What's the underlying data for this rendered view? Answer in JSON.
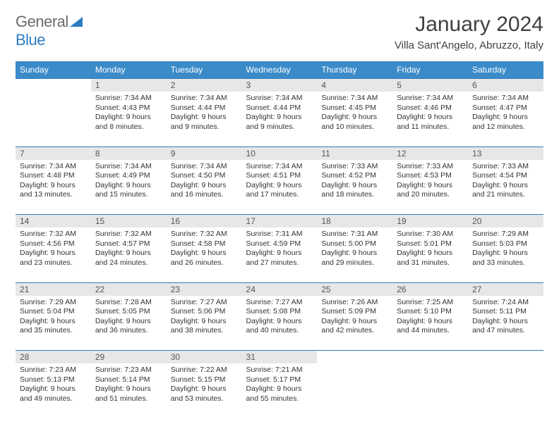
{
  "logo": {
    "general": "General",
    "blue": "Blue"
  },
  "title": "January 2024",
  "location": "Villa Sant'Angelo, Abruzzo, Italy",
  "colors": {
    "header_bg": "#3b8bc9",
    "header_text": "#ffffff",
    "daynum_bg": "#e7e7e7",
    "border": "#2e7cc0",
    "logo_gray": "#6b6b6b",
    "logo_blue": "#2e7cc0"
  },
  "weekdays": [
    "Sunday",
    "Monday",
    "Tuesday",
    "Wednesday",
    "Thursday",
    "Friday",
    "Saturday"
  ],
  "weeks": [
    {
      "nums": [
        "",
        "1",
        "2",
        "3",
        "4",
        "5",
        "6"
      ],
      "cells": [
        null,
        {
          "sunrise": "7:34 AM",
          "sunset": "4:43 PM",
          "daylight": "9 hours and 8 minutes."
        },
        {
          "sunrise": "7:34 AM",
          "sunset": "4:44 PM",
          "daylight": "9 hours and 9 minutes."
        },
        {
          "sunrise": "7:34 AM",
          "sunset": "4:44 PM",
          "daylight": "9 hours and 9 minutes."
        },
        {
          "sunrise": "7:34 AM",
          "sunset": "4:45 PM",
          "daylight": "9 hours and 10 minutes."
        },
        {
          "sunrise": "7:34 AM",
          "sunset": "4:46 PM",
          "daylight": "9 hours and 11 minutes."
        },
        {
          "sunrise": "7:34 AM",
          "sunset": "4:47 PM",
          "daylight": "9 hours and 12 minutes."
        }
      ]
    },
    {
      "nums": [
        "7",
        "8",
        "9",
        "10",
        "11",
        "12",
        "13"
      ],
      "cells": [
        {
          "sunrise": "7:34 AM",
          "sunset": "4:48 PM",
          "daylight": "9 hours and 13 minutes."
        },
        {
          "sunrise": "7:34 AM",
          "sunset": "4:49 PM",
          "daylight": "9 hours and 15 minutes."
        },
        {
          "sunrise": "7:34 AM",
          "sunset": "4:50 PM",
          "daylight": "9 hours and 16 minutes."
        },
        {
          "sunrise": "7:34 AM",
          "sunset": "4:51 PM",
          "daylight": "9 hours and 17 minutes."
        },
        {
          "sunrise": "7:33 AM",
          "sunset": "4:52 PM",
          "daylight": "9 hours and 18 minutes."
        },
        {
          "sunrise": "7:33 AM",
          "sunset": "4:53 PM",
          "daylight": "9 hours and 20 minutes."
        },
        {
          "sunrise": "7:33 AM",
          "sunset": "4:54 PM",
          "daylight": "9 hours and 21 minutes."
        }
      ]
    },
    {
      "nums": [
        "14",
        "15",
        "16",
        "17",
        "18",
        "19",
        "20"
      ],
      "cells": [
        {
          "sunrise": "7:32 AM",
          "sunset": "4:56 PM",
          "daylight": "9 hours and 23 minutes."
        },
        {
          "sunrise": "7:32 AM",
          "sunset": "4:57 PM",
          "daylight": "9 hours and 24 minutes."
        },
        {
          "sunrise": "7:32 AM",
          "sunset": "4:58 PM",
          "daylight": "9 hours and 26 minutes."
        },
        {
          "sunrise": "7:31 AM",
          "sunset": "4:59 PM",
          "daylight": "9 hours and 27 minutes."
        },
        {
          "sunrise": "7:31 AM",
          "sunset": "5:00 PM",
          "daylight": "9 hours and 29 minutes."
        },
        {
          "sunrise": "7:30 AM",
          "sunset": "5:01 PM",
          "daylight": "9 hours and 31 minutes."
        },
        {
          "sunrise": "7:29 AM",
          "sunset": "5:03 PM",
          "daylight": "9 hours and 33 minutes."
        }
      ]
    },
    {
      "nums": [
        "21",
        "22",
        "23",
        "24",
        "25",
        "26",
        "27"
      ],
      "cells": [
        {
          "sunrise": "7:29 AM",
          "sunset": "5:04 PM",
          "daylight": "9 hours and 35 minutes."
        },
        {
          "sunrise": "7:28 AM",
          "sunset": "5:05 PM",
          "daylight": "9 hours and 36 minutes."
        },
        {
          "sunrise": "7:27 AM",
          "sunset": "5:06 PM",
          "daylight": "9 hours and 38 minutes."
        },
        {
          "sunrise": "7:27 AM",
          "sunset": "5:08 PM",
          "daylight": "9 hours and 40 minutes."
        },
        {
          "sunrise": "7:26 AM",
          "sunset": "5:09 PM",
          "daylight": "9 hours and 42 minutes."
        },
        {
          "sunrise": "7:25 AM",
          "sunset": "5:10 PM",
          "daylight": "9 hours and 44 minutes."
        },
        {
          "sunrise": "7:24 AM",
          "sunset": "5:11 PM",
          "daylight": "9 hours and 47 minutes."
        }
      ]
    },
    {
      "nums": [
        "28",
        "29",
        "30",
        "31",
        "",
        "",
        ""
      ],
      "cells": [
        {
          "sunrise": "7:23 AM",
          "sunset": "5:13 PM",
          "daylight": "9 hours and 49 minutes."
        },
        {
          "sunrise": "7:23 AM",
          "sunset": "5:14 PM",
          "daylight": "9 hours and 51 minutes."
        },
        {
          "sunrise": "7:22 AM",
          "sunset": "5:15 PM",
          "daylight": "9 hours and 53 minutes."
        },
        {
          "sunrise": "7:21 AM",
          "sunset": "5:17 PM",
          "daylight": "9 hours and 55 minutes."
        },
        null,
        null,
        null
      ]
    }
  ],
  "labels": {
    "sunrise": "Sunrise:",
    "sunset": "Sunset:",
    "daylight": "Daylight:"
  }
}
